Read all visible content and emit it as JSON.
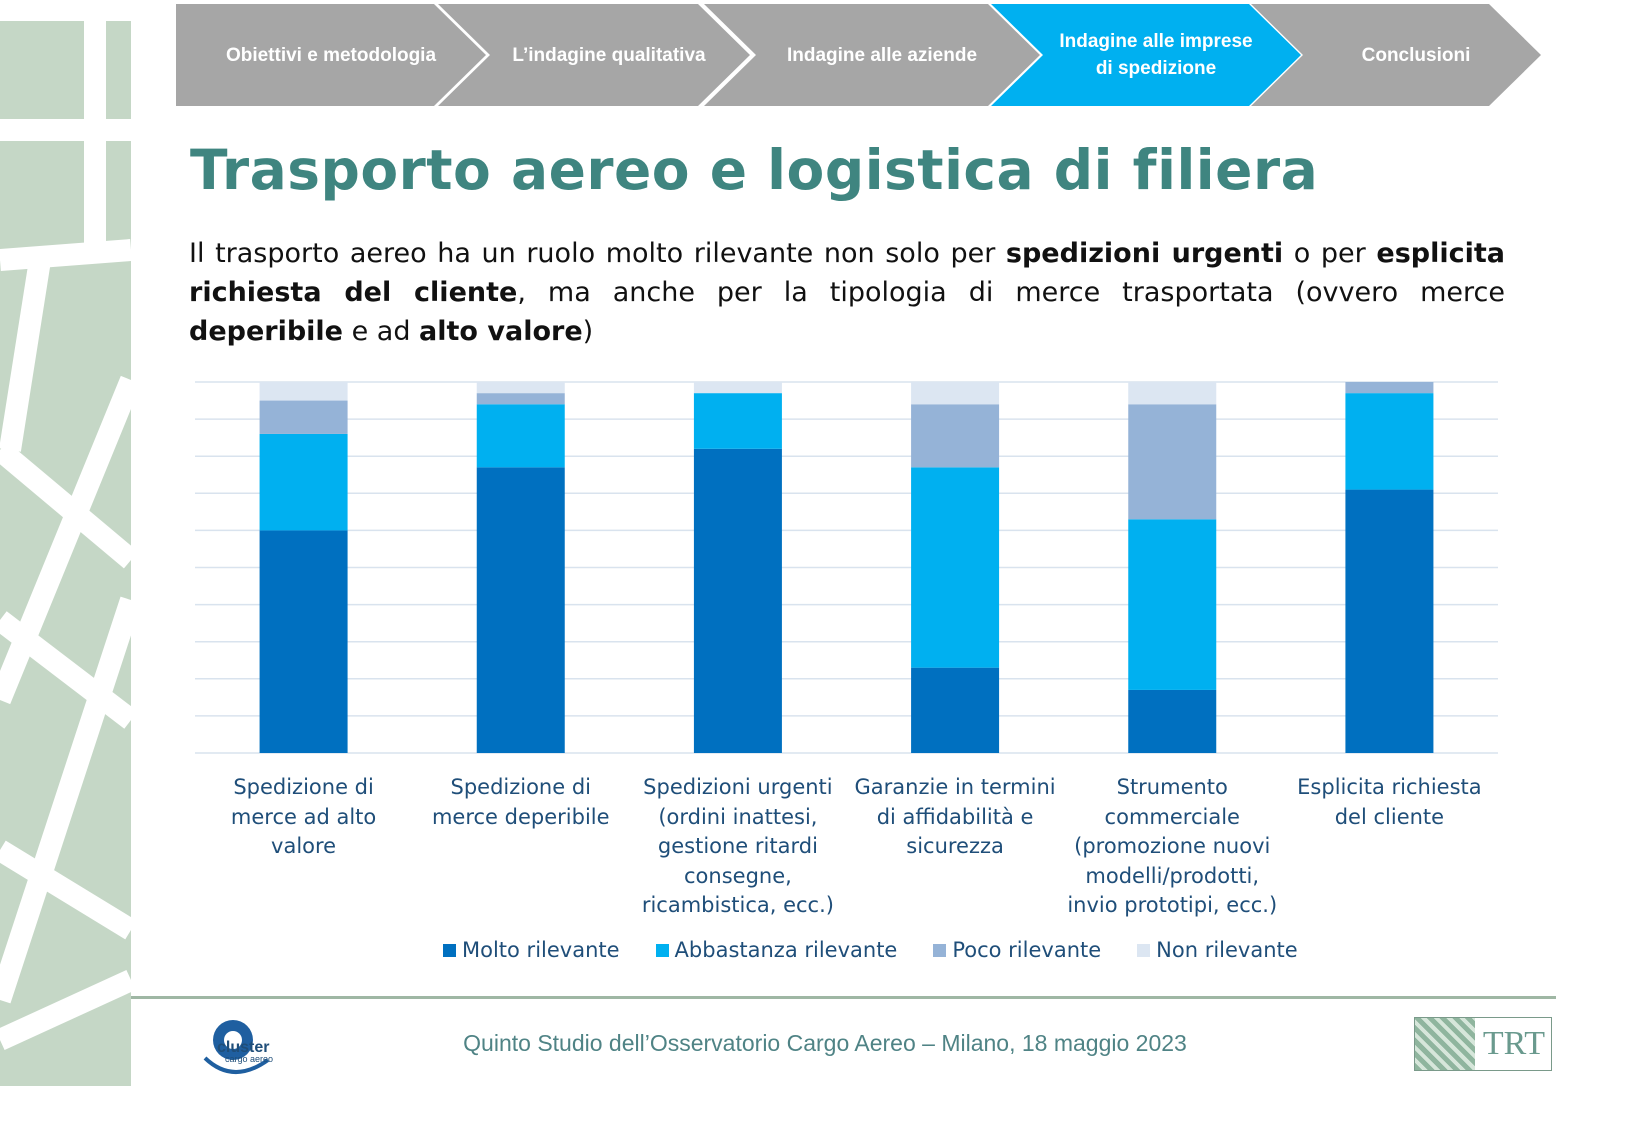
{
  "breadcrumbs": [
    {
      "label": "Obiettivi e metodologia",
      "active": false
    },
    {
      "label": "L’indagine qualitativa",
      "active": false
    },
    {
      "label": "Indagine alle aziende",
      "active": false
    },
    {
      "label": "Indagine alle imprese di spedizione",
      "active": true
    },
    {
      "label": "Conclusioni",
      "active": false
    }
  ],
  "colors": {
    "crumb": "#a6a6a6",
    "crumb_active": "#00b0f0",
    "title": "#3f8580"
  },
  "title": "Trasporto aereo e logistica di filiera",
  "paragraph": [
    {
      "t": "Il trasporto aereo ha un ruolo molto rilevante non solo per ",
      "b": false
    },
    {
      "t": "spedizioni urgenti",
      "b": true
    },
    {
      "t": " o per ",
      "b": false
    },
    {
      "t": "esplicita richiesta del cliente",
      "b": true
    },
    {
      "t": ", ma anche per la tipologia di merce trasportata (ovvero merce ",
      "b": false
    },
    {
      "t": "deperibile",
      "b": true
    },
    {
      "t": " e ad ",
      "b": false
    },
    {
      "t": "alto valore",
      "b": true
    },
    {
      "t": ")",
      "b": false
    }
  ],
  "chart_data": {
    "type": "bar",
    "stacked": true,
    "categories": [
      "Spedizione di merce ad alto valore",
      "Spedizione di merce deperibile",
      "Spedizioni urgenti (ordini inattesi, gestione ritardi consegne, ricambistica, ecc.)",
      "Garanzie in termini di affidabilità e sicurezza",
      "Strumento commerciale (promozione nuovi modelli/prodotti, invio prototipi, ecc.)",
      "Esplicita richiesta del cliente"
    ],
    "series": [
      {
        "name": "Molto rilevante",
        "color": "#0070c0",
        "values": [
          60,
          77,
          82,
          23,
          17,
          71
        ]
      },
      {
        "name": "Abbastanza rilevante",
        "color": "#00b0f0",
        "values": [
          26,
          17,
          15,
          54,
          46,
          26
        ]
      },
      {
        "name": "Poco rilevante",
        "color": "#95b3d7",
        "values": [
          9,
          3,
          0,
          17,
          31,
          3
        ]
      },
      {
        "name": "Non rilevante",
        "color": "#dce6f2",
        "values": [
          5,
          3,
          3,
          6,
          6,
          0
        ]
      }
    ],
    "ylim": [
      0,
      100
    ],
    "grid": true,
    "legend": "bottom"
  },
  "footer": {
    "text": "Quinto Studio dell’Osservatorio Cargo Aereo – Milano, 18 maggio 2023",
    "logo_left": "cluster cargo aereo",
    "logo_right": "TRT"
  }
}
